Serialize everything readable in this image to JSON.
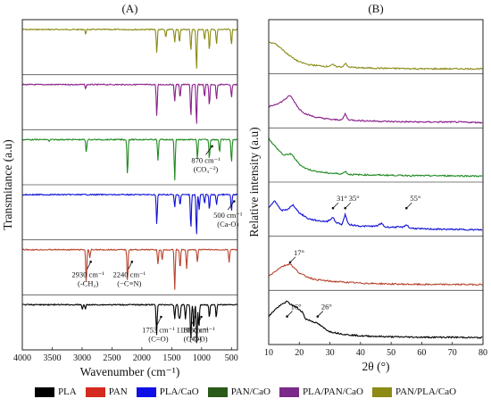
{
  "chart_data": [
    {
      "type": "line",
      "panel_label": "(A)",
      "xlabel": "Wavenumber (cm⁻¹)",
      "ylabel": "Transmitance (a.u)",
      "xlim": [
        4000,
        400
      ],
      "x_reversed": true,
      "xticks": [
        4000,
        3500,
        3000,
        2500,
        2000,
        1500,
        1000,
        500
      ],
      "grid": false,
      "stack_order_top_to_bottom": [
        "PAN/PLA/CaO",
        "PLA/PAN/CaO",
        "PAN/CaO",
        "PLA/CaO",
        "PAN",
        "PLA"
      ],
      "series": [
        {
          "name": "PAN/PLA/CaO",
          "color": "#8b8b16",
          "dips": [
            [
              2940,
              0.1
            ],
            [
              1750,
              0.55
            ],
            [
              1600,
              0.2
            ],
            [
              1450,
              0.3
            ],
            [
              1370,
              0.3
            ],
            [
              1180,
              0.5
            ],
            [
              1085,
              0.95
            ],
            [
              950,
              0.25
            ],
            [
              870,
              0.5
            ],
            [
              750,
              0.35
            ],
            [
              500,
              0.35
            ]
          ]
        },
        {
          "name": "PLA/PAN/CaO",
          "color": "#8a1f8a",
          "dips": [
            [
              2940,
              0.1
            ],
            [
              1750,
              0.75
            ],
            [
              1450,
              0.4
            ],
            [
              1360,
              0.3
            ],
            [
              1180,
              0.75
            ],
            [
              1085,
              0.95
            ],
            [
              950,
              0.3
            ],
            [
              870,
              0.5
            ],
            [
              750,
              0.35
            ],
            [
              500,
              0.3
            ]
          ]
        },
        {
          "name": "PAN/CaO",
          "color": "#218a21",
          "dips": [
            [
              3550,
              0.05
            ],
            [
              2930,
              0.3
            ],
            [
              2240,
              0.85
            ],
            [
              1730,
              0.5
            ],
            [
              1450,
              0.95
            ],
            [
              1070,
              0.45
            ],
            [
              870,
              0.45
            ],
            [
              700,
              0.3
            ],
            [
              500,
              0.55
            ]
          ]
        },
        {
          "name": "PLA/CaO",
          "color": "#1010d6",
          "dips": [
            [
              1750,
              0.7
            ],
            [
              1450,
              0.3
            ],
            [
              1360,
              0.25
            ],
            [
              1180,
              0.8
            ],
            [
              1085,
              0.95
            ],
            [
              1040,
              0.35
            ],
            [
              950,
              0.2
            ],
            [
              870,
              0.35
            ],
            [
              750,
              0.25
            ],
            [
              500,
              0.4
            ]
          ]
        },
        {
          "name": "PAN",
          "color": "#b8442e",
          "dips": [
            [
              2930,
              0.8
            ],
            [
              2870,
              0.2
            ],
            [
              2240,
              0.75
            ],
            [
              1730,
              0.35
            ],
            [
              1660,
              0.25
            ],
            [
              1450,
              0.95
            ],
            [
              1360,
              0.45
            ],
            [
              1250,
              0.45
            ],
            [
              1070,
              0.3
            ],
            [
              540,
              0.3
            ]
          ]
        },
        {
          "name": "PLA",
          "color": "#000000",
          "dips": [
            [
              2995,
              0.1
            ],
            [
              2945,
              0.1
            ],
            [
              1753,
              0.7
            ],
            [
              1450,
              0.35
            ],
            [
              1380,
              0.3
            ],
            [
              1360,
              0.3
            ],
            [
              1270,
              0.35
            ],
            [
              1180,
              0.85
            ],
            [
              1130,
              0.6
            ],
            [
              1080,
              0.95
            ],
            [
              1045,
              0.55
            ],
            [
              870,
              0.3
            ],
            [
              755,
              0.3
            ]
          ]
        }
      ],
      "annotations": [
        {
          "text": [
            "870 cm⁻¹",
            "(CO₃⁻²)"
          ],
          "series": "PAN/CaO",
          "x": 870
        },
        {
          "text": [
            "500 cm⁻¹",
            "(Ca-O)"
          ],
          "series": "PLA/CaO",
          "x": 500
        },
        {
          "text": [
            "2930 cm⁻¹",
            "(-CH₂)"
          ],
          "series": "PAN",
          "x": 2930
        },
        {
          "text": [
            "2240 cm⁻¹",
            "(−C≡N)"
          ],
          "series": "PAN",
          "x": 2240
        },
        {
          "text": [
            "1753 cm⁻¹",
            "(C=O)"
          ],
          "series": "PLA",
          "x": 1753
        },
        {
          "text": [
            "1180 cm⁻¹",
            "(C-O)"
          ],
          "series": "PLA",
          "x": 1180
        },
        {
          "text": [
            "1080 cm⁻¹",
            "(C-O)"
          ],
          "series": "PLA",
          "x": 1080
        }
      ]
    },
    {
      "type": "line",
      "panel_label": "(B)",
      "xlabel": "2θ (°)",
      "ylabel": "Relative intensity (a.u)",
      "xlim": [
        10,
        80
      ],
      "xticks": [
        10,
        20,
        30,
        40,
        50,
        60,
        70,
        80
      ],
      "grid": false,
      "stack_order_top_to_bottom": [
        "PAN/PLA/CaO",
        "PLA/PAN/CaO",
        "PAN/CaO",
        "PLA/CaO",
        "PAN",
        "PLA"
      ],
      "series": [
        {
          "name": "PAN/PLA/CaO",
          "color": "#8b8b16",
          "points": [
            [
              10,
              0.62
            ],
            [
              12,
              0.6
            ],
            [
              14,
              0.5
            ],
            [
              16,
              0.38
            ],
            [
              18,
              0.28
            ],
            [
              20,
              0.2
            ],
            [
              23,
              0.14
            ],
            [
              26,
              0.12
            ],
            [
              29,
              0.1
            ],
            [
              31,
              0.14
            ],
            [
              32,
              0.1
            ],
            [
              34,
              0.09
            ],
            [
              35,
              0.17
            ],
            [
              36,
              0.09
            ],
            [
              40,
              0.07
            ],
            [
              50,
              0.06
            ],
            [
              60,
              0.05
            ],
            [
              70,
              0.05
            ],
            [
              80,
              0.05
            ]
          ]
        },
        {
          "name": "PLA/PAN/CaO",
          "color": "#8a1f8a",
          "points": [
            [
              10,
              0.4
            ],
            [
              12,
              0.45
            ],
            [
              14,
              0.5
            ],
            [
              16,
              0.6
            ],
            [
              17,
              0.65
            ],
            [
              18,
              0.55
            ],
            [
              20,
              0.35
            ],
            [
              22,
              0.25
            ],
            [
              25,
              0.18
            ],
            [
              29,
              0.14
            ],
            [
              31,
              0.12
            ],
            [
              34,
              0.12
            ],
            [
              35,
              0.25
            ],
            [
              36,
              0.12
            ],
            [
              40,
              0.1
            ],
            [
              50,
              0.08
            ],
            [
              60,
              0.07
            ],
            [
              70,
              0.07
            ],
            [
              80,
              0.06
            ]
          ]
        },
        {
          "name": "PAN/CaO",
          "color": "#218a21",
          "points": [
            [
              10,
              0.9
            ],
            [
              11,
              0.8
            ],
            [
              13,
              0.65
            ],
            [
              15,
              0.52
            ],
            [
              17,
              0.56
            ],
            [
              18,
              0.5
            ],
            [
              20,
              0.33
            ],
            [
              22,
              0.24
            ],
            [
              25,
              0.18
            ],
            [
              29,
              0.14
            ],
            [
              34,
              0.12
            ],
            [
              35,
              0.18
            ],
            [
              36,
              0.11
            ],
            [
              40,
              0.1
            ],
            [
              50,
              0.09
            ],
            [
              60,
              0.08
            ],
            [
              70,
              0.08
            ],
            [
              80,
              0.07
            ]
          ]
        },
        {
          "name": "PLA/CaO",
          "color": "#1010d6",
          "points": [
            [
              10,
              0.55
            ],
            [
              12,
              0.72
            ],
            [
              14,
              0.5
            ],
            [
              16,
              0.52
            ],
            [
              18,
              0.62
            ],
            [
              20,
              0.45
            ],
            [
              23,
              0.32
            ],
            [
              26,
              0.28
            ],
            [
              29,
              0.26
            ],
            [
              31,
              0.35
            ],
            [
              32,
              0.24
            ],
            [
              34,
              0.2
            ],
            [
              35,
              0.42
            ],
            [
              36,
              0.2
            ],
            [
              40,
              0.16
            ],
            [
              45,
              0.16
            ],
            [
              47,
              0.22
            ],
            [
              48,
              0.14
            ],
            [
              54,
              0.14
            ],
            [
              55,
              0.2
            ],
            [
              56,
              0.12
            ],
            [
              60,
              0.1
            ],
            [
              70,
              0.09
            ],
            [
              80,
              0.08
            ]
          ]
        },
        {
          "name": "PAN",
          "color": "#b8442e",
          "points": [
            [
              10,
              0.25
            ],
            [
              12,
              0.35
            ],
            [
              14,
              0.45
            ],
            [
              16,
              0.5
            ],
            [
              17,
              0.52
            ],
            [
              18,
              0.45
            ],
            [
              20,
              0.32
            ],
            [
              22,
              0.25
            ],
            [
              25,
              0.18
            ],
            [
              30,
              0.14
            ],
            [
              40,
              0.1
            ],
            [
              50,
              0.08
            ],
            [
              60,
              0.07
            ],
            [
              70,
              0.07
            ],
            [
              80,
              0.07
            ]
          ]
        },
        {
          "name": "PLA",
          "color": "#000000",
          "points": [
            [
              10,
              0.55
            ],
            [
              12,
              0.7
            ],
            [
              14,
              0.8
            ],
            [
              16,
              0.88
            ],
            [
              17,
              0.82
            ],
            [
              19,
              0.75
            ],
            [
              21,
              0.65
            ],
            [
              22,
              0.5
            ],
            [
              24,
              0.45
            ],
            [
              26,
              0.4
            ],
            [
              28,
              0.3
            ],
            [
              30,
              0.22
            ],
            [
              35,
              0.16
            ],
            [
              40,
              0.13
            ],
            [
              50,
              0.11
            ],
            [
              60,
              0.1
            ],
            [
              70,
              0.1
            ],
            [
              80,
              0.09
            ]
          ]
        }
      ],
      "annotations": [
        {
          "text": [
            "31°"
          ],
          "series": "PLA/CaO",
          "x": 31
        },
        {
          "text": [
            "35°"
          ],
          "series": "PLA/CaO",
          "x": 35
        },
        {
          "text": [
            "55°"
          ],
          "series": "PLA/CaO",
          "x": 55
        },
        {
          "text": [
            "17°"
          ],
          "series": "PAN",
          "x": 17
        },
        {
          "text": [
            "16°"
          ],
          "series": "PLA",
          "x": 16
        },
        {
          "text": [
            "26°"
          ],
          "series": "PLA",
          "x": 26
        }
      ]
    }
  ],
  "legend": {
    "placement": "bottom",
    "items": [
      {
        "label": "PLA",
        "color": "#000000"
      },
      {
        "label": "PAN",
        "color": "#d42a1f"
      },
      {
        "label": "PLA/CaO",
        "color": "#1010e6"
      },
      {
        "label": "PAN/CaO",
        "color": "#2a5a1a"
      },
      {
        "label": "PLA/PAN/CaO",
        "color": "#7a2a8a"
      },
      {
        "label": "PAN/PLA/CaO",
        "color": "#8b8b16"
      }
    ]
  }
}
